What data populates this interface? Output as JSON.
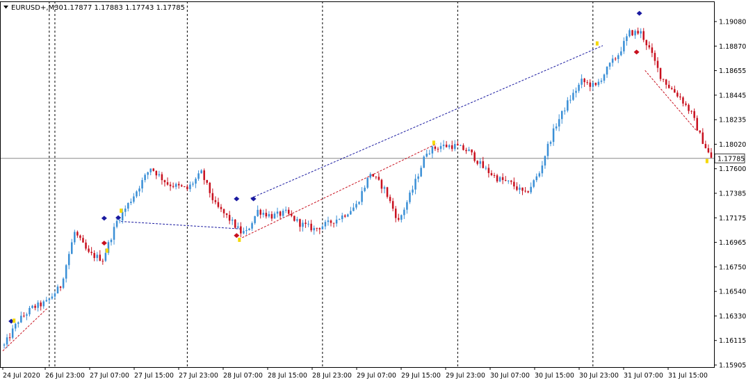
{
  "header": {
    "symbol": "EURUSD+,M30",
    "ohlc": "1.17877 1.17883 1.17743 1.17785"
  },
  "colors": {
    "bull": "#3a8fd6",
    "bear": "#c8101e",
    "grid": "#000000",
    "price_line": "#888888",
    "price_tag_bg": "#ffffff",
    "marker_blue": "#1a1aa0",
    "marker_yellow": "#f5d800",
    "trend_blue": "#1a1aa0",
    "trend_red": "#c8101e"
  },
  "chart_data": {
    "type": "candlestick",
    "ylim": [
      1.1585,
      1.1924
    ],
    "y_ticks": [
      "1.19080",
      "1.18870",
      "1.18655",
      "1.18445",
      "1.18235",
      "1.18020",
      "1.17600",
      "1.17385",
      "1.17175",
      "1.16965",
      "1.16750",
      "1.16540",
      "1.16330",
      "1.16115",
      "1.15905"
    ],
    "current_price": "1.17785",
    "x_ticks": [
      "24 Jul 2020",
      "26 Jul 23:00",
      "27 Jul 07:00",
      "27 Jul 15:00",
      "27 Jul 23:00",
      "28 Jul 07:00",
      "28 Jul 15:00",
      "28 Jul 23:00",
      "29 Jul 07:00",
      "29 Jul 15:00",
      "29 Jul 23:00",
      "30 Jul 07:00",
      "30 Jul 15:00",
      "30 Jul 23:00",
      "31 Jul 07:00",
      "31 Jul 15:00"
    ],
    "bar_count": 252,
    "separator_bars": [
      16.5,
      18.5,
      65.5,
      113.5,
      161.5,
      209.5
    ],
    "anchors": [
      [
        0,
        1.1605
      ],
      [
        5,
        1.1628
      ],
      [
        10,
        1.164
      ],
      [
        15,
        1.1645
      ],
      [
        20,
        1.166
      ],
      [
        25,
        1.171
      ],
      [
        30,
        1.169
      ],
      [
        35,
        1.1685
      ],
      [
        40,
        1.172
      ],
      [
        45,
        1.174
      ],
      [
        52,
        1.177
      ],
      [
        58,
        1.1755
      ],
      [
        65,
        1.175
      ],
      [
        70,
        1.1765
      ],
      [
        75,
        1.1735
      ],
      [
        80,
        1.1722
      ],
      [
        84,
        1.171
      ],
      [
        86,
        1.171
      ],
      [
        90,
        1.173
      ],
      [
        95,
        1.1725
      ],
      [
        100,
        1.1728
      ],
      [
        105,
        1.1718
      ],
      [
        110,
        1.1713
      ],
      [
        115,
        1.1718
      ],
      [
        120,
        1.1725
      ],
      [
        125,
        1.1735
      ],
      [
        130,
        1.1765
      ],
      [
        135,
        1.175
      ],
      [
        140,
        1.172
      ],
      [
        145,
        1.175
      ],
      [
        150,
        1.1785
      ],
      [
        155,
        1.179
      ],
      [
        160,
        1.179
      ],
      [
        165,
        1.1785
      ],
      [
        170,
        1.177
      ],
      [
        175,
        1.176
      ],
      [
        180,
        1.1755
      ],
      [
        185,
        1.1745
      ],
      [
        190,
        1.1765
      ],
      [
        193,
        1.179
      ],
      [
        196,
        1.181
      ],
      [
        200,
        1.183
      ],
      [
        205,
        1.185
      ],
      [
        210,
        1.1845
      ],
      [
        215,
        1.1865
      ],
      [
        218,
        1.1875
      ],
      [
        222,
        1.1895
      ],
      [
        226,
        1.1895
      ],
      [
        229,
        1.188
      ],
      [
        233,
        1.1855
      ],
      [
        236,
        1.1845
      ],
      [
        240,
        1.1835
      ],
      [
        244,
        1.182
      ],
      [
        247,
        1.18
      ],
      [
        251,
        1.1778
      ]
    ],
    "trend_lines": [
      {
        "color": "blue",
        "points": [
          [
            42,
            1.172
          ],
          [
            85,
            1.1713
          ]
        ]
      },
      {
        "color": "blue",
        "points": [
          [
            88,
            1.17415
          ],
          [
            213,
            1.1883
          ]
        ]
      },
      {
        "color": "red",
        "points": [
          [
            85,
            1.1705
          ],
          [
            154,
            1.1792
          ]
        ]
      },
      {
        "color": "red",
        "points": [
          [
            0,
            1.16
          ],
          [
            16,
            1.164
          ]
        ]
      },
      {
        "color": "red",
        "points": [
          [
            228,
            1.186
          ],
          [
            246,
            1.1805
          ]
        ]
      }
    ],
    "markers_blue_arrow": [
      [
        3,
        1.16275
      ],
      [
        36,
        1.1723
      ],
      [
        41,
        1.17235
      ],
      [
        83,
        1.1741
      ],
      [
        89,
        1.1741
      ],
      [
        226,
        1.1913
      ]
    ],
    "markers_red_arrow": [
      [
        36,
        1.17
      ],
      [
        83,
        1.1707
      ],
      [
        225,
        1.1877
      ]
    ],
    "markers_yellow": [
      [
        4,
        1.1628
      ],
      [
        37,
        1.1693
      ],
      [
        42,
        1.173
      ],
      [
        84,
        1.1703
      ],
      [
        153,
        1.1793
      ],
      [
        211,
        1.1885
      ],
      [
        250,
        1.1776
      ]
    ]
  }
}
